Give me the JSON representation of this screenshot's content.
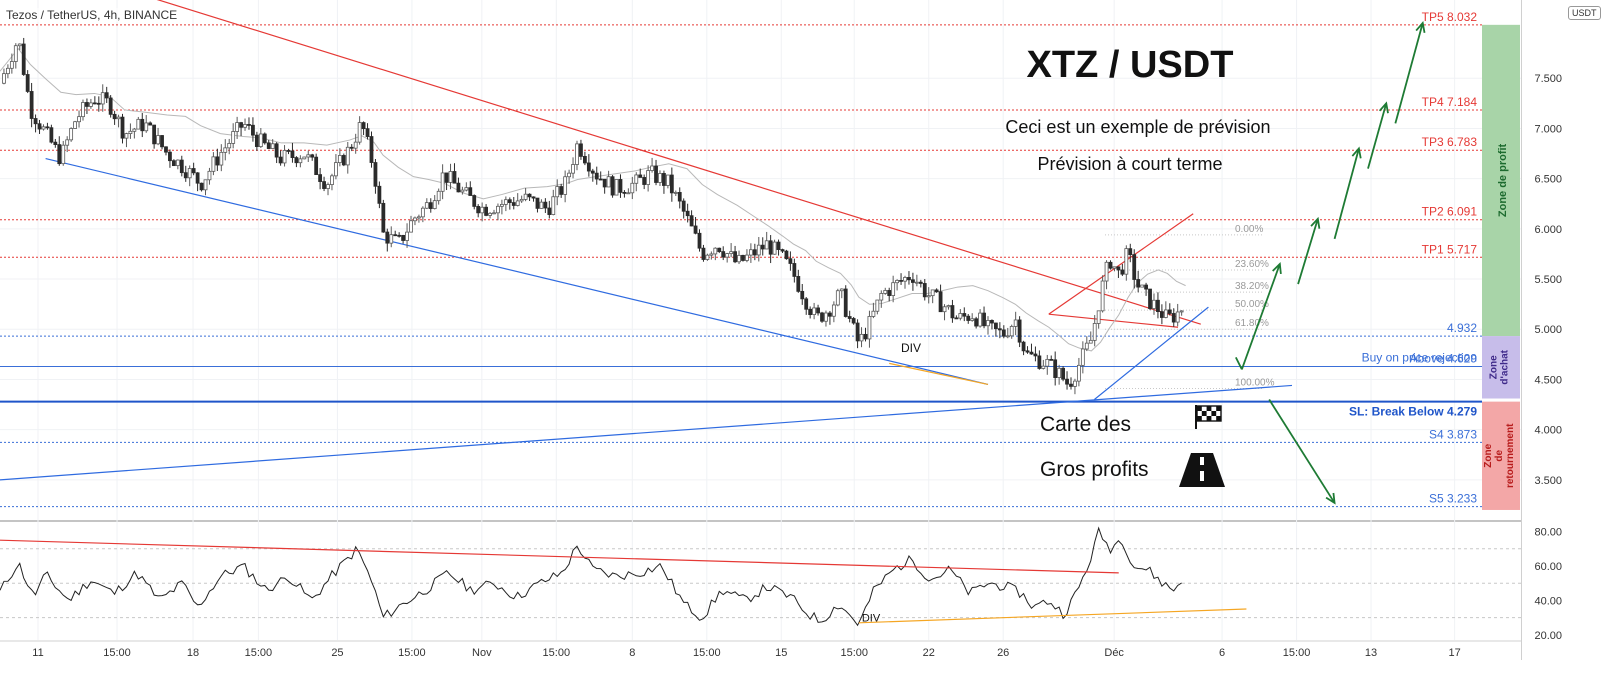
{
  "header": {
    "symbol_line": "Tezos / TetherUS, 4h, BINANCE",
    "currency_badge": "USDT"
  },
  "overlay_text": {
    "title": "XTZ / USDT",
    "line1": "Ceci est un exemple de prévision",
    "line2": "Prévision à court terme",
    "roadmap1": "Carte des",
    "roadmap2": "Gros profits",
    "div_label_main": "DIV",
    "div_label_rsi": "DIV"
  },
  "colors": {
    "up_candle": "#5a5a5a",
    "down_candle": "#2b2b2b",
    "tp_line": "#e53935",
    "support_line": "#3a6fd8",
    "resistance_trend": "#e53935",
    "support_trend": "#2f6be0",
    "orange_trend": "#f5a623",
    "forecast_arrow": "#1e7b34",
    "zone_profit": "#a8d4a8",
    "zone_buy": "#c7bdea",
    "zone_reversal": "#f3a7a7",
    "rsi_line": "#222222",
    "moving_average": "#b8b8b8"
  },
  "chart_data": [
    {
      "type": "candlestick",
      "title": "Tezos / TetherUS, 4h, BINANCE",
      "ylim": [
        3.1,
        8.1
      ],
      "y_ticks": [
        "3.500",
        "4.000",
        "4.500",
        "5.000",
        "5.500",
        "6.000",
        "6.500",
        "7.000",
        "7.500"
      ],
      "y_tick_values": [
        3.5,
        4.0,
        4.5,
        5.0,
        5.5,
        6.0,
        6.5,
        7.0,
        7.5
      ],
      "x_ticks": [
        "11",
        "15:00",
        "18",
        "15:00",
        "25",
        "15:00",
        "Nov",
        "15:00",
        "8",
        "15:00",
        "15",
        "15:00",
        "22",
        "26",
        "Déc",
        "6",
        "15:00",
        "13",
        "17"
      ],
      "x_tick_fracs": [
        0.025,
        0.077,
        0.127,
        0.17,
        0.222,
        0.271,
        0.317,
        0.366,
        0.416,
        0.465,
        0.514,
        0.562,
        0.611,
        0.66,
        0.733,
        0.804,
        0.853,
        0.902,
        0.957
      ],
      "grid": true,
      "levels": [
        {
          "label": "TP5 8.032",
          "value": 8.032,
          "kind": "target"
        },
        {
          "label": "TP4 7.184",
          "value": 7.184,
          "kind": "target"
        },
        {
          "label": "TP3 6.783",
          "value": 6.783,
          "kind": "target"
        },
        {
          "label": "TP2 6.091",
          "value": 6.091,
          "kind": "target"
        },
        {
          "label": "TP1 5.717",
          "value": 5.717,
          "kind": "target"
        },
        {
          "label": "4.932",
          "value": 4.932,
          "kind": "entry"
        },
        {
          "label": "Buy on price rejection",
          "value": 4.64,
          "kind": "note"
        },
        {
          "label": "Above 4.629",
          "value": 4.629,
          "kind": "entry"
        },
        {
          "label": "SL: Break Below 4.279",
          "value": 4.279,
          "kind": "stop"
        },
        {
          "label": "S4 3.873",
          "value": 3.873,
          "kind": "support"
        },
        {
          "label": "S5 3.233",
          "value": 3.233,
          "kind": "support"
        }
      ],
      "fibonacci": [
        {
          "label": "0.00%",
          "value": 5.94
        },
        {
          "label": "23.60%",
          "value": 5.59
        },
        {
          "label": "38.20%",
          "value": 5.37
        },
        {
          "label": "50.00%",
          "value": 5.19
        },
        {
          "label": "61.80%",
          "value": 5.0
        },
        {
          "label": "100.00%",
          "value": 4.41
        }
      ],
      "zones": [
        {
          "label": "Zone de profit",
          "from": 4.932,
          "to": 8.032
        },
        {
          "label": "Zone d'achat",
          "from": 4.31,
          "to": 4.932
        },
        {
          "label": "Zone de retournement",
          "from": 3.2,
          "to": 4.279
        }
      ],
      "price_path": [
        [
          0.0,
          7.45
        ],
        [
          0.012,
          7.9
        ],
        [
          0.02,
          7.2
        ],
        [
          0.03,
          6.95
        ],
        [
          0.04,
          6.7
        ],
        [
          0.05,
          7.1
        ],
        [
          0.062,
          7.3
        ],
        [
          0.072,
          7.25
        ],
        [
          0.082,
          6.95
        ],
        [
          0.095,
          7.05
        ],
        [
          0.11,
          6.75
        ],
        [
          0.122,
          6.6
        ],
        [
          0.132,
          6.45
        ],
        [
          0.145,
          6.75
        ],
        [
          0.16,
          7.05
        ],
        [
          0.172,
          6.85
        ],
        [
          0.185,
          6.7
        ],
        [
          0.2,
          6.75
        ],
        [
          0.215,
          6.45
        ],
        [
          0.23,
          6.8
        ],
        [
          0.238,
          7.05
        ],
        [
          0.246,
          6.6
        ],
        [
          0.252,
          5.95
        ],
        [
          0.262,
          5.85
        ],
        [
          0.272,
          6.1
        ],
        [
          0.282,
          6.25
        ],
        [
          0.292,
          6.55
        ],
        [
          0.305,
          6.35
        ],
        [
          0.318,
          6.2
        ],
        [
          0.33,
          6.25
        ],
        [
          0.345,
          6.3
        ],
        [
          0.36,
          6.2
        ],
        [
          0.372,
          6.45
        ],
        [
          0.38,
          6.85
        ],
        [
          0.392,
          6.55
        ],
        [
          0.405,
          6.4
        ],
        [
          0.418,
          6.45
        ],
        [
          0.428,
          6.55
        ],
        [
          0.44,
          6.45
        ],
        [
          0.452,
          6.1
        ],
        [
          0.462,
          5.75
        ],
        [
          0.472,
          5.85
        ],
        [
          0.485,
          5.65
        ],
        [
          0.495,
          5.75
        ],
        [
          0.505,
          5.85
        ],
        [
          0.515,
          5.7
        ],
        [
          0.522,
          5.55
        ],
        [
          0.53,
          5.3
        ],
        [
          0.537,
          5.1
        ],
        [
          0.545,
          5.2
        ],
        [
          0.553,
          5.35
        ],
        [
          0.56,
          5.05
        ],
        [
          0.565,
          4.85
        ],
        [
          0.572,
          5.05
        ],
        [
          0.58,
          5.35
        ],
        [
          0.59,
          5.45
        ],
        [
          0.6,
          5.55
        ],
        [
          0.61,
          5.35
        ],
        [
          0.62,
          5.25
        ],
        [
          0.63,
          5.1
        ],
        [
          0.64,
          5.15
        ],
        [
          0.65,
          5.0
        ],
        [
          0.66,
          4.95
        ],
        [
          0.668,
          5.1
        ],
        [
          0.675,
          4.75
        ],
        [
          0.683,
          4.7
        ],
        [
          0.69,
          4.65
        ],
        [
          0.697,
          4.55
        ],
        [
          0.703,
          4.45
        ],
        [
          0.71,
          4.65
        ],
        [
          0.718,
          4.9
        ],
        [
          0.724,
          5.35
        ],
        [
          0.73,
          5.7
        ],
        [
          0.736,
          5.55
        ],
        [
          0.742,
          5.75
        ],
        [
          0.748,
          5.45
        ],
        [
          0.755,
          5.3
        ],
        [
          0.762,
          5.2
        ],
        [
          0.768,
          5.1
        ],
        [
          0.774,
          5.15
        ],
        [
          0.78,
          5.25
        ]
      ],
      "forecast_path": [
        [
          0.817,
          4.6
        ],
        [
          0.842,
          5.65
        ],
        [
          0.854,
          5.45
        ],
        [
          0.867,
          6.1
        ],
        [
          0.878,
          5.9
        ],
        [
          0.894,
          6.8
        ],
        [
          0.9,
          6.6
        ],
        [
          0.912,
          7.25
        ],
        [
          0.918,
          7.05
        ],
        [
          0.936,
          8.05
        ]
      ],
      "bear_path": [
        [
          0.835,
          4.3
        ],
        [
          0.878,
          3.27
        ]
      ]
    },
    {
      "type": "line",
      "title": "",
      "ylim": [
        17,
        85
      ],
      "y_ticks": [
        "80.00",
        "60.00",
        "40.00",
        "20.00"
      ],
      "y_tick_values": [
        80,
        60,
        40,
        20
      ],
      "levels": [
        70,
        50,
        30
      ],
      "rsi_path": [
        [
          0.0,
          45
        ],
        [
          0.012,
          62
        ],
        [
          0.022,
          42
        ],
        [
          0.03,
          55
        ],
        [
          0.045,
          40
        ],
        [
          0.06,
          52
        ],
        [
          0.075,
          44
        ],
        [
          0.09,
          56
        ],
        [
          0.105,
          40
        ],
        [
          0.12,
          50
        ],
        [
          0.13,
          36
        ],
        [
          0.145,
          54
        ],
        [
          0.16,
          60
        ],
        [
          0.175,
          46
        ],
        [
          0.19,
          54
        ],
        [
          0.205,
          40
        ],
        [
          0.22,
          56
        ],
        [
          0.235,
          70
        ],
        [
          0.245,
          50
        ],
        [
          0.252,
          30
        ],
        [
          0.265,
          38
        ],
        [
          0.28,
          46
        ],
        [
          0.295,
          56
        ],
        [
          0.31,
          46
        ],
        [
          0.325,
          50
        ],
        [
          0.34,
          42
        ],
        [
          0.355,
          50
        ],
        [
          0.37,
          56
        ],
        [
          0.38,
          72
        ],
        [
          0.39,
          58
        ],
        [
          0.405,
          54
        ],
        [
          0.42,
          56
        ],
        [
          0.435,
          60
        ],
        [
          0.45,
          38
        ],
        [
          0.462,
          30
        ],
        [
          0.475,
          46
        ],
        [
          0.49,
          40
        ],
        [
          0.505,
          48
        ],
        [
          0.52,
          42
        ],
        [
          0.532,
          32
        ],
        [
          0.54,
          28
        ],
        [
          0.552,
          38
        ],
        [
          0.565,
          26
        ],
        [
          0.575,
          46
        ],
        [
          0.588,
          58
        ],
        [
          0.6,
          64
        ],
        [
          0.612,
          52
        ],
        [
          0.625,
          58
        ],
        [
          0.638,
          44
        ],
        [
          0.65,
          50
        ],
        [
          0.662,
          48
        ],
        [
          0.672,
          44
        ],
        [
          0.68,
          36
        ],
        [
          0.69,
          40
        ],
        [
          0.7,
          32
        ],
        [
          0.708,
          44
        ],
        [
          0.715,
          58
        ],
        [
          0.723,
          80
        ],
        [
          0.73,
          70
        ],
        [
          0.738,
          76
        ],
        [
          0.746,
          60
        ],
        [
          0.755,
          58
        ],
        [
          0.765,
          50
        ],
        [
          0.772,
          46
        ],
        [
          0.78,
          54
        ]
      ]
    }
  ]
}
